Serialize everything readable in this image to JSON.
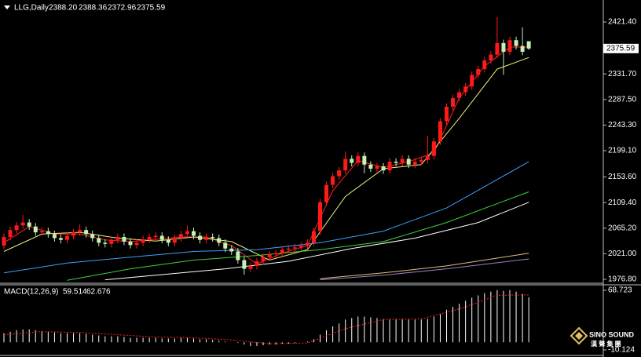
{
  "chart_data": [
    {
      "type": "candlestick",
      "title": "LLG,Daily",
      "ohlc_labels": [
        "2388.20",
        "2388.36",
        "2372.96",
        "2375.59"
      ],
      "up_color": "#ff1a1a",
      "down_color": "#c6f0b4",
      "open": [
        2035,
        2050,
        2062,
        2070,
        2075,
        2068,
        2058,
        2060,
        2055,
        2048,
        2045,
        2052,
        2058,
        2062,
        2055,
        2048,
        2040,
        2038,
        2045,
        2050,
        2042,
        2036,
        2040,
        2046,
        2050,
        2052,
        2045,
        2040,
        2048,
        2055,
        2060,
        2052,
        2045,
        2050,
        2048,
        2040,
        2030,
        2025,
        2010,
        1995,
        2000,
        2008,
        2015,
        2020,
        2022,
        2028,
        2030,
        2032,
        2035,
        2040,
        2060,
        2110,
        2140,
        2155,
        2165,
        2185,
        2178,
        2190,
        2175,
        2168,
        2172,
        2165,
        2180,
        2178,
        2185,
        2175,
        2180,
        2183,
        2190,
        2215,
        2250,
        2275,
        2290,
        2300,
        2310,
        2330,
        2340,
        2355,
        2365,
        2385,
        2370,
        2390,
        2380,
        2388.2
      ],
      "high": [
        2056,
        2068,
        2076,
        2088,
        2081,
        2074,
        2066,
        2066,
        2061,
        2054,
        2058,
        2064,
        2072,
        2068,
        2061,
        2054,
        2046,
        2051,
        2056,
        2056,
        2048,
        2046,
        2052,
        2056,
        2058,
        2058,
        2051,
        2054,
        2061,
        2070,
        2066,
        2058,
        2056,
        2056,
        2054,
        2046,
        2036,
        2031,
        2016,
        2006,
        2014,
        2021,
        2026,
        2028,
        2034,
        2036,
        2038,
        2041,
        2046,
        2066,
        2116,
        2146,
        2161,
        2171,
        2198,
        2191,
        2196,
        2196,
        2181,
        2178,
        2178,
        2186,
        2186,
        2191,
        2191,
        2186,
        2189,
        2225,
        2221,
        2256,
        2281,
        2296,
        2306,
        2316,
        2336,
        2346,
        2361,
        2371,
        2430,
        2391,
        2396,
        2396,
        2412,
        2388.36
      ],
      "low": [
        2029,
        2044,
        2056,
        2064,
        2062,
        2052,
        2052,
        2049,
        2042,
        2039,
        2039,
        2046,
        2052,
        2049,
        2042,
        2034,
        2032,
        2032,
        2039,
        2036,
        2030,
        2030,
        2034,
        2040,
        2044,
        2039,
        2034,
        2034,
        2042,
        2049,
        2046,
        2039,
        2039,
        2042,
        2034,
        2024,
        2019,
        2004,
        1985,
        1989,
        1994,
        2002,
        2009,
        2014,
        2016,
        2022,
        2024,
        2026,
        2029,
        2034,
        2054,
        2104,
        2134,
        2149,
        2159,
        2172,
        2172,
        2160,
        2162,
        2162,
        2159,
        2159,
        2172,
        2172,
        2169,
        2169,
        2174,
        2177,
        2184,
        2209,
        2244,
        2269,
        2284,
        2294,
        2304,
        2324,
        2334,
        2349,
        2359,
        2330,
        2364,
        2374,
        2364,
        2372.96
      ],
      "close": [
        2050,
        2062,
        2070,
        2075,
        2068,
        2058,
        2060,
        2055,
        2048,
        2045,
        2052,
        2058,
        2062,
        2055,
        2048,
        2040,
        2038,
        2045,
        2050,
        2042,
        2036,
        2040,
        2046,
        2050,
        2052,
        2045,
        2040,
        2048,
        2055,
        2060,
        2052,
        2045,
        2050,
        2048,
        2040,
        2030,
        2025,
        2010,
        1995,
        2000,
        2008,
        2015,
        2020,
        2022,
        2028,
        2030,
        2032,
        2035,
        2040,
        2060,
        2110,
        2140,
        2155,
        2165,
        2185,
        2178,
        2190,
        2175,
        2168,
        2172,
        2165,
        2180,
        2178,
        2185,
        2175,
        2180,
        2183,
        2190,
        2215,
        2250,
        2275,
        2290,
        2300,
        2310,
        2330,
        2340,
        2355,
        2365,
        2385,
        2370,
        2390,
        2380,
        2370,
        2375.59
      ],
      "lines": [
        {
          "color": "#ff2020",
          "x": [
            0,
            4,
            8,
            12,
            16,
            20,
            24,
            28,
            32,
            36,
            40,
            44,
            48,
            52,
            56,
            60,
            64,
            68,
            72,
            76,
            80,
            83
          ],
          "values": [
            2040,
            2068,
            2055,
            2055,
            2045,
            2042,
            2046,
            2050,
            2050,
            2035,
            2003,
            2022,
            2035,
            2130,
            2182,
            2170,
            2180,
            2195,
            2290,
            2345,
            2378,
            2378
          ]
        },
        {
          "color": "#f0f080",
          "x": [
            0,
            6,
            12,
            18,
            24,
            30,
            36,
            42,
            48,
            54,
            60,
            66,
            72,
            78,
            83
          ],
          "values": [
            2025,
            2055,
            2058,
            2048,
            2043,
            2050,
            2042,
            2010,
            2028,
            2120,
            2168,
            2175,
            2255,
            2340,
            2360
          ]
        },
        {
          "color": "#3aa0ff",
          "x": [
            0,
            10,
            20,
            30,
            40,
            50,
            60,
            70,
            83
          ],
          "values": [
            1988,
            2005,
            2015,
            2025,
            2028,
            2040,
            2060,
            2100,
            2180
          ]
        },
        {
          "color": "#40d040",
          "x": [
            10,
            20,
            30,
            40,
            50,
            60,
            70,
            83
          ],
          "values": [
            1975,
            1995,
            2010,
            2018,
            2028,
            2042,
            2075,
            2128
          ]
        },
        {
          "color": "#ffffff",
          "x": [
            16,
            25,
            35,
            45,
            55,
            65,
            75,
            83
          ],
          "values": [
            1976,
            1985,
            1995,
            2008,
            2030,
            2048,
            2075,
            2110
          ]
        },
        {
          "color": "#e0c080",
          "x": [
            50,
            60,
            70,
            83
          ],
          "values": [
            1978,
            1988,
            2000,
            2022
          ]
        },
        {
          "color": "#a080c0",
          "x": [
            50,
            60,
            70,
            83
          ],
          "values": [
            1976,
            1984,
            1995,
            2012
          ]
        }
      ],
      "ylim": [
        1971.4,
        2459.4
      ],
      "yticks": [
        {
          "value": 2421.4,
          "label": "2421.40"
        },
        {
          "value": 2331.7,
          "label": "2331.70"
        },
        {
          "value": 2287.5,
          "label": "2287.50"
        },
        {
          "value": 2243.3,
          "label": "2243.30"
        },
        {
          "value": 2199.1,
          "label": "2199.10"
        },
        {
          "value": 2153.6,
          "label": "2153.60"
        },
        {
          "value": 2109.4,
          "label": "2109.40"
        },
        {
          "value": 2065.2,
          "label": "2065.20"
        },
        {
          "value": 2021,
          "label": "2021.00"
        },
        {
          "value": 1976.8,
          "label": "1976.80"
        }
      ]
    },
    {
      "type": "macd",
      "title": "MACD(12,26,9)",
      "color": "#ffffff",
      "values": [
        12,
        14,
        16,
        17,
        17,
        16,
        15,
        14,
        13,
        12,
        12,
        12,
        12,
        11,
        10,
        9,
        8,
        8,
        8,
        7,
        6,
        6,
        6,
        6,
        6,
        5,
        5,
        5,
        6,
        6,
        5,
        4,
        4,
        3,
        2,
        1,
        0,
        -1,
        -3,
        -5,
        -5,
        -4,
        -3,
        -3,
        -2,
        -2,
        -1,
        0,
        1,
        4,
        10,
        16,
        21,
        25,
        30,
        32,
        34,
        34,
        33,
        32,
        31,
        31,
        31,
        31,
        30,
        30,
        30,
        31,
        34,
        38,
        43,
        47,
        51,
        55,
        59,
        62,
        65,
        67,
        69,
        68,
        69,
        67,
        64,
        59.514
      ],
      "signal": {
        "color": "#ff2020",
        "x": [
          0,
          6,
          12,
          18,
          24,
          30,
          36,
          42,
          48,
          54,
          60,
          66,
          72,
          78,
          83
        ],
        "values": [
          10,
          14,
          13,
          10,
          7,
          6,
          3,
          -2,
          -1,
          18,
          30,
          31,
          44,
          62,
          62.676
        ]
      },
      "ylim": [
        -16.35,
        75.98
      ],
      "yticks": [
        68.723,
        -10.124
      ]
    }
  ],
  "watermark": {
    "name": "SINO SOUND",
    "subtitle": "漢 聲 集 團"
  }
}
